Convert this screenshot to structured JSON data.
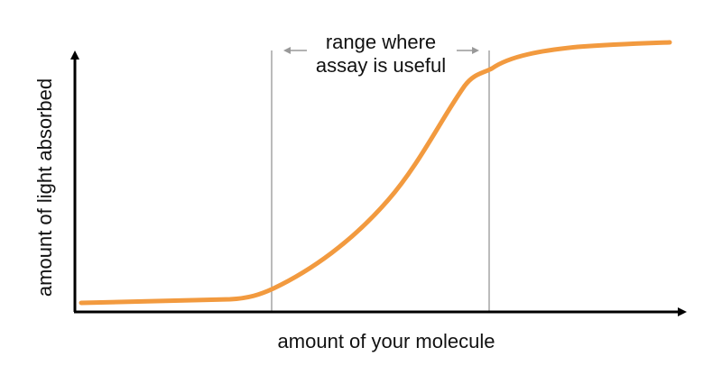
{
  "labels": {
    "x_axis": "amount of your molecule",
    "y_axis": "amount of light absorbed",
    "annotation_line1": "range where",
    "annotation_line2": "assay is useful"
  },
  "colors": {
    "curve": "#f29a3f",
    "axis": "#000000",
    "guide_line": "#777777",
    "range_arrow": "#999999"
  }
}
